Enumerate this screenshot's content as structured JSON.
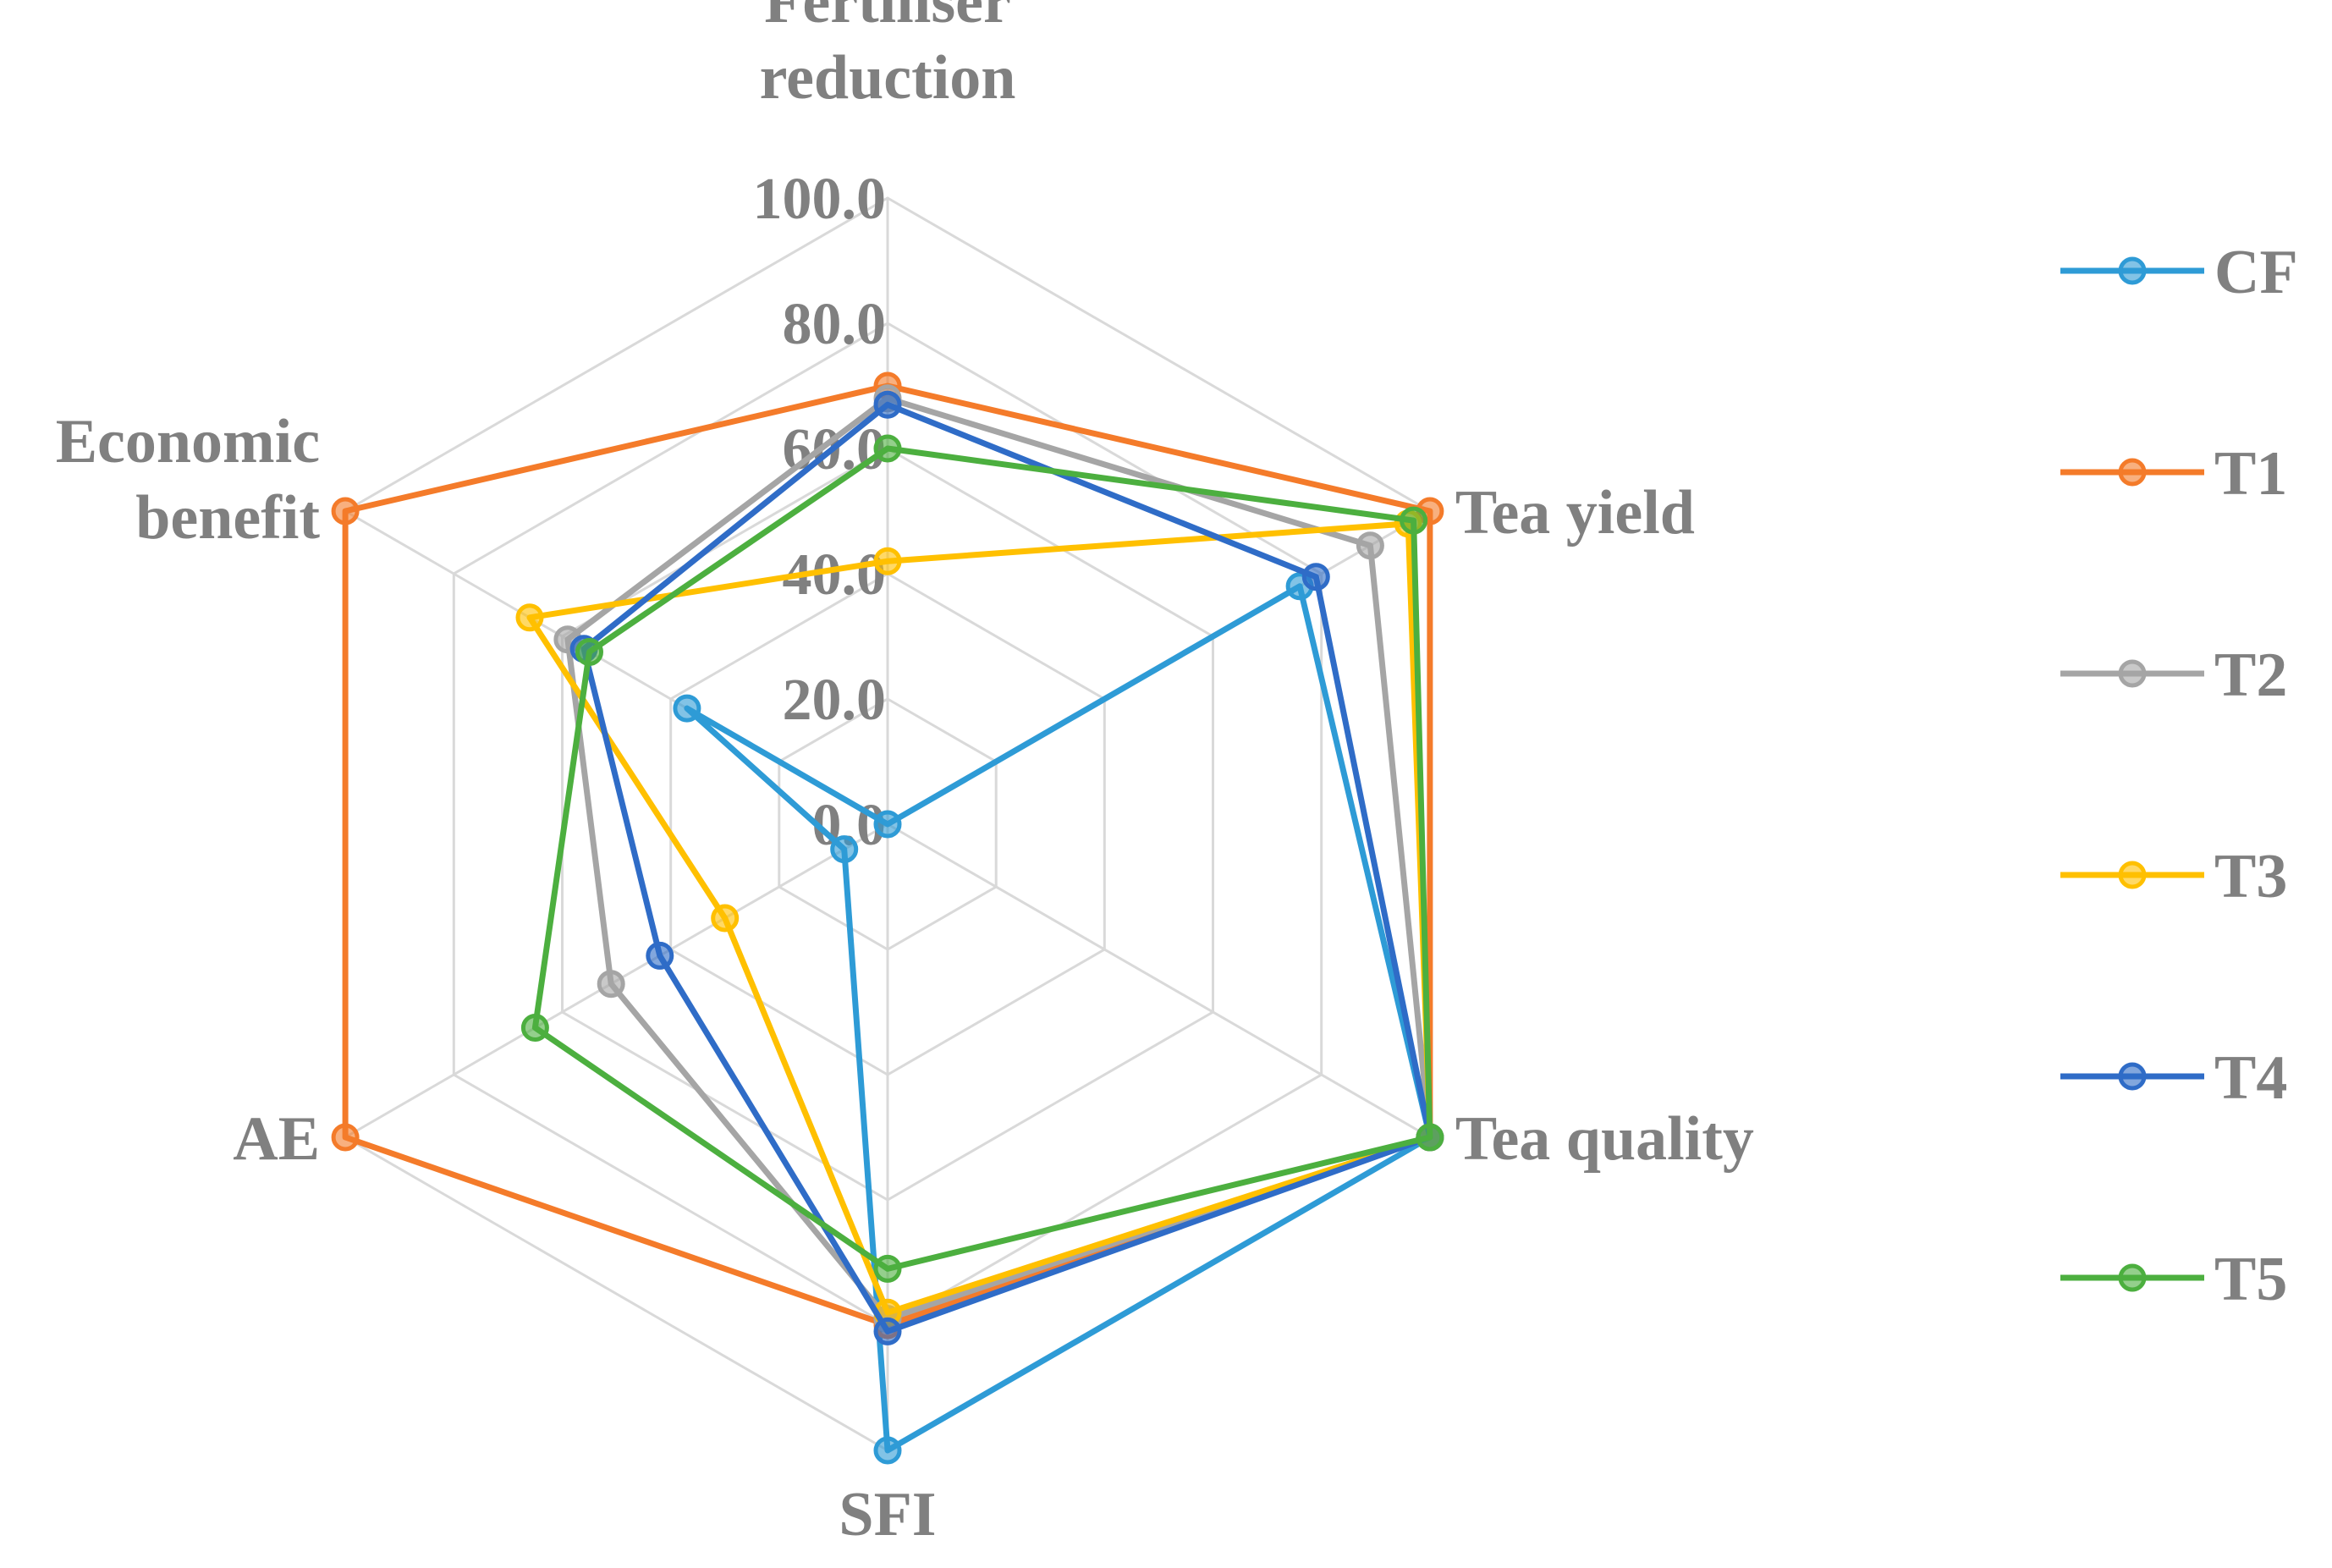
{
  "chart_data": {
    "type": "radar",
    "title": "",
    "axes": [
      "Fertiliser reduction",
      "Tea yield",
      "Tea quality",
      "SFI",
      "AE",
      "Economic benefit"
    ],
    "axis_label_lines": [
      [
        "Fertiliser",
        "reduction"
      ],
      [
        "Tea yield"
      ],
      [
        "Tea quality"
      ],
      [
        "SFI"
      ],
      [
        "AE"
      ],
      [
        "Economic",
        "benefit"
      ]
    ],
    "range": [
      0,
      100
    ],
    "ticks": [
      "0.0",
      "20.0",
      "40.0",
      "60.0",
      "80.0",
      "100.0"
    ],
    "tick_values": [
      0,
      20,
      40,
      60,
      80,
      100
    ],
    "series": [
      {
        "name": "CF",
        "color": "#2E9BD6",
        "values": [
          0,
          76,
          100,
          100,
          8,
          37
        ]
      },
      {
        "name": "T1",
        "color": "#F47B2A",
        "values": [
          70,
          100,
          100,
          80,
          100,
          100
        ]
      },
      {
        "name": "T2",
        "color": "#A5A5A5",
        "values": [
          68,
          89,
          100,
          79,
          51,
          59
        ]
      },
      {
        "name": "T3",
        "color": "#FFC000",
        "values": [
          42,
          96,
          100,
          78,
          30,
          66
        ]
      },
      {
        "name": "T4",
        "color": "#2F6CC7",
        "values": [
          67,
          79,
          100,
          81,
          42,
          56
        ]
      },
      {
        "name": "T5",
        "color": "#4CAF3F",
        "values": [
          60,
          97,
          100,
          71,
          65,
          55
        ]
      }
    ],
    "legend_position": "right"
  }
}
